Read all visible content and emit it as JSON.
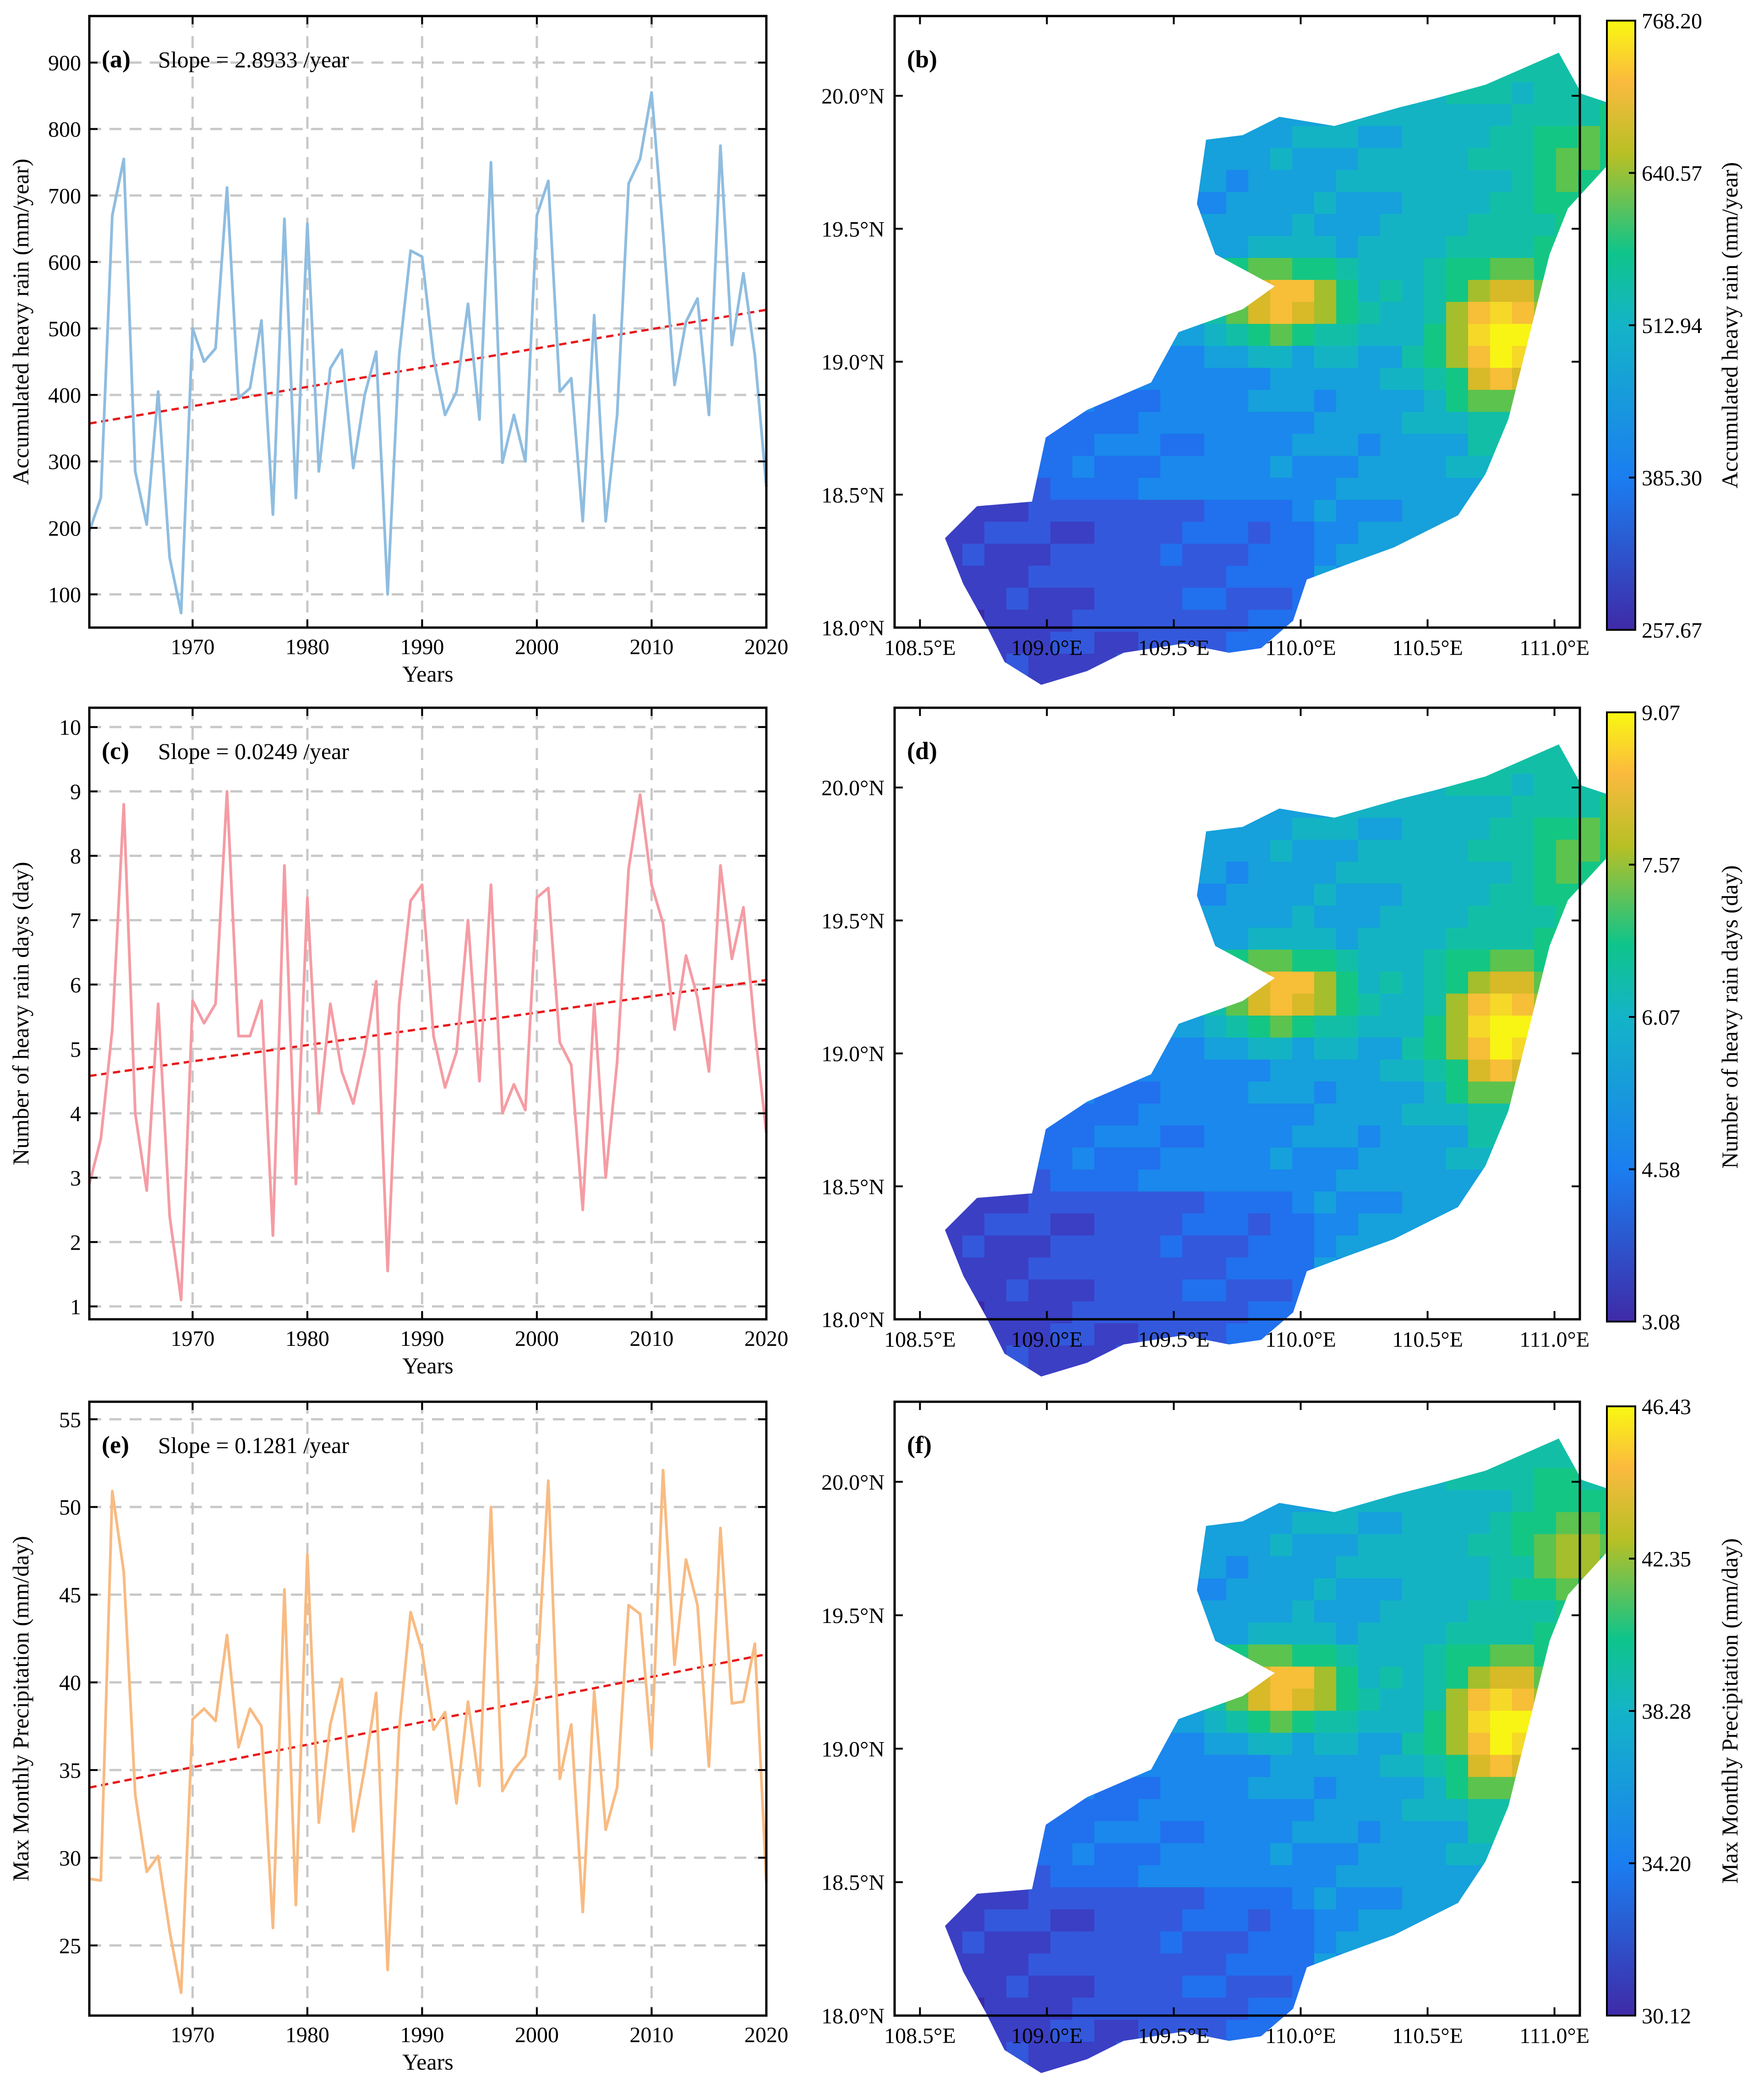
{
  "chart_data": [
    {
      "panel": "a",
      "type": "line",
      "label": "(a)",
      "slope_text": "Slope = 2.8933 /year",
      "xlabel": "Years",
      "ylabel": "Accumulated heavy rain (mm/year)",
      "xlim": [
        1961,
        2020
      ],
      "ylim": [
        50,
        970
      ],
      "xticks": [
        1970,
        1980,
        1990,
        2000,
        2010,
        2020
      ],
      "yticks": [
        100,
        200,
        300,
        400,
        500,
        600,
        700,
        800,
        900
      ],
      "grid": true,
      "color": "#8fbde0",
      "trend": {
        "color": "#e8181b",
        "y_start": 357,
        "y_end": 528
      },
      "x": [
        1961,
        1962,
        1963,
        1964,
        1965,
        1966,
        1967,
        1968,
        1969,
        1970,
        1971,
        1972,
        1973,
        1974,
        1975,
        1976,
        1977,
        1978,
        1979,
        1980,
        1981,
        1982,
        1983,
        1984,
        1985,
        1986,
        1987,
        1988,
        1989,
        1990,
        1991,
        1992,
        1993,
        1994,
        1995,
        1996,
        1997,
        1998,
        1999,
        2000,
        2001,
        2002,
        2003,
        2004,
        2005,
        2006,
        2007,
        2008,
        2009,
        2010,
        2011,
        2012,
        2013,
        2014,
        2015,
        2016,
        2017,
        2018,
        2019,
        2020
      ],
      "values": [
        195,
        245,
        670,
        755,
        285,
        205,
        405,
        155,
        72,
        500,
        450,
        470,
        712,
        395,
        410,
        512,
        220,
        665,
        245,
        658,
        285,
        440,
        468,
        290,
        400,
        465,
        100,
        460,
        617,
        608,
        455,
        370,
        405,
        537,
        363,
        750,
        298,
        370,
        300,
        670,
        722,
        405,
        425,
        210,
        520,
        210,
        370,
        718,
        755,
        855,
        645,
        415,
        510,
        545,
        370,
        775,
        475,
        583,
        460,
        262
      ]
    },
    {
      "panel": "c",
      "type": "line",
      "label": "(c)",
      "slope_text": "Slope = 0.0249 /year",
      "xlabel": "Years",
      "ylabel": "Number of heavy rain days (day)",
      "xlim": [
        1961,
        2020
      ],
      "ylim": [
        0.8,
        10.3
      ],
      "xticks": [
        1970,
        1980,
        1990,
        2000,
        2010,
        2020
      ],
      "yticks": [
        1,
        2,
        3,
        4,
        5,
        6,
        7,
        8,
        9,
        10
      ],
      "grid": true,
      "color": "#f59ca4",
      "trend": {
        "color": "#e8181b",
        "y_start": 4.58,
        "y_end": 6.07
      },
      "x": [
        1961,
        1962,
        1963,
        1964,
        1965,
        1966,
        1967,
        1968,
        1969,
        1970,
        1971,
        1972,
        1973,
        1974,
        1975,
        1976,
        1977,
        1978,
        1979,
        1980,
        1981,
        1982,
        1983,
        1984,
        1985,
        1986,
        1987,
        1988,
        1989,
        1990,
        1991,
        1992,
        1993,
        1994,
        1995,
        1996,
        1997,
        1998,
        1999,
        2000,
        2001,
        2002,
        2003,
        2004,
        2005,
        2006,
        2007,
        2008,
        2009,
        2010,
        2011,
        2012,
        2013,
        2014,
        2015,
        2016,
        2017,
        2018,
        2019,
        2020
      ],
      "values": [
        2.9,
        3.6,
        5.3,
        8.8,
        4.0,
        2.8,
        5.7,
        2.4,
        1.1,
        5.75,
        5.4,
        5.7,
        9.0,
        5.2,
        5.2,
        5.75,
        2.1,
        7.85,
        2.9,
        7.35,
        4.0,
        5.7,
        4.65,
        4.15,
        4.95,
        6.05,
        1.55,
        5.7,
        7.3,
        7.55,
        5.2,
        4.4,
        4.95,
        7.0,
        4.5,
        7.55,
        4.0,
        4.45,
        4.05,
        7.35,
        7.5,
        5.1,
        4.75,
        2.5,
        5.7,
        3.0,
        4.8,
        7.8,
        8.95,
        7.55,
        6.95,
        5.3,
        6.45,
        5.8,
        4.65,
        7.85,
        6.4,
        7.2,
        5.3,
        3.7
      ]
    },
    {
      "panel": "e",
      "type": "line",
      "label": "(e)",
      "slope_text": "Slope = 0.1281 /year",
      "xlabel": "Years",
      "ylabel": "Max Monthly Precipitation (mm/day)",
      "xlim": [
        1961,
        2020
      ],
      "ylim": [
        21,
        56
      ],
      "xticks": [
        1970,
        1980,
        1990,
        2000,
        2010,
        2020
      ],
      "yticks": [
        25,
        30,
        35,
        40,
        45,
        50,
        55
      ],
      "grid": true,
      "color": "#f8bb82",
      "trend": {
        "color": "#e8181b",
        "y_start": 34.0,
        "y_end": 41.6
      },
      "x": [
        1961,
        1962,
        1963,
        1964,
        1965,
        1966,
        1967,
        1968,
        1969,
        1970,
        1971,
        1972,
        1973,
        1974,
        1975,
        1976,
        1977,
        1978,
        1979,
        1980,
        1981,
        1982,
        1983,
        1984,
        1985,
        1986,
        1987,
        1988,
        1989,
        1990,
        1991,
        1992,
        1993,
        1994,
        1995,
        1996,
        1997,
        1998,
        1999,
        2000,
        2001,
        2002,
        2003,
        2004,
        2005,
        2006,
        2007,
        2008,
        2009,
        2010,
        2011,
        2012,
        2013,
        2014,
        2015,
        2016,
        2017,
        2018,
        2019,
        2020
      ],
      "values": [
        28.8,
        28.7,
        50.9,
        46.3,
        33.6,
        29.2,
        30.1,
        25.8,
        22.3,
        37.9,
        38.5,
        37.8,
        42.7,
        36.3,
        38.5,
        37.5,
        26.0,
        45.3,
        27.3,
        47.3,
        32.0,
        37.6,
        40.2,
        31.5,
        35.1,
        39.4,
        23.6,
        37.3,
        44.0,
        41.8,
        37.3,
        38.3,
        33.1,
        38.9,
        34.1,
        50.0,
        33.8,
        35.0,
        35.8,
        40.0,
        51.5,
        34.5,
        37.6,
        26.9,
        39.5,
        31.6,
        34.0,
        44.4,
        43.9,
        36.2,
        52.1,
        41.0,
        47.0,
        44.4,
        35.2,
        48.8,
        38.8,
        38.9,
        42.2,
        28.6
      ]
    },
    {
      "panel": "b",
      "type": "heatmap",
      "label": "(b)",
      "xticks": [
        "108.5°E",
        "109.0°E",
        "109.5°E",
        "110.0°E",
        "110.5°E",
        "111.0°E"
      ],
      "yticks": [
        "18.0°N",
        "18.5°N",
        "19.0°N",
        "19.5°N",
        "20.0°N"
      ],
      "colorbar_label": "Accumulated heavy rain (mm/year)",
      "colorbar_ticks": [
        "768.20",
        "640.57",
        "512.94",
        "385.30",
        "257.67"
      ]
    },
    {
      "panel": "d",
      "type": "heatmap",
      "label": "(d)",
      "xticks": [
        "108.5°E",
        "109.0°E",
        "109.5°E",
        "110.0°E",
        "110.5°E",
        "111.0°E"
      ],
      "yticks": [
        "18.0°N",
        "18.5°N",
        "19.0°N",
        "19.5°N",
        "20.0°N"
      ],
      "colorbar_label": "Number of heavy rain days (day)",
      "colorbar_ticks": [
        "9.07",
        "7.57",
        "6.07",
        "4.58",
        "3.08"
      ]
    },
    {
      "panel": "f",
      "type": "heatmap",
      "label": "(f)",
      "xticks": [
        "108.5°E",
        "109.0°E",
        "109.5°E",
        "110.0°E",
        "110.5°E",
        "111.0°E"
      ],
      "yticks": [
        "18.0°N",
        "18.5°N",
        "19.0°N",
        "19.5°N",
        "20.0°N"
      ],
      "colorbar_label": "Max Monthly Precipitation (mm/day)",
      "colorbar_ticks": [
        "46.43",
        "42.35",
        "38.28",
        "34.20",
        "30.12"
      ]
    }
  ]
}
